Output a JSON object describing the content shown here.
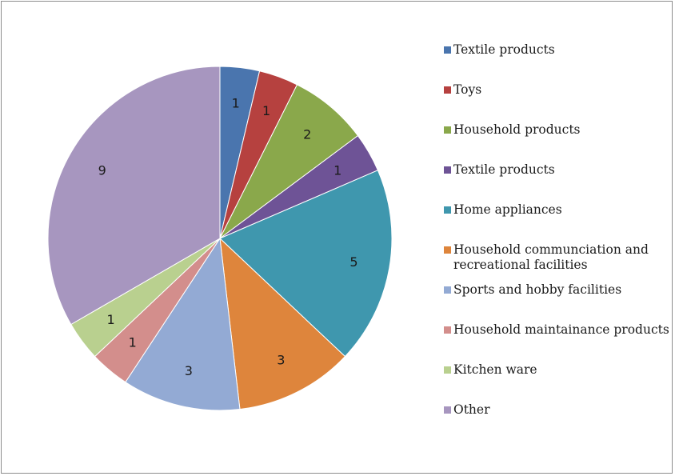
{
  "chart_data": {
    "type": "pie",
    "categories": [
      "Textile products",
      "Toys",
      "Household products",
      "Textile products",
      "Home appliances",
      "Household communciation and recreational facilities",
      "Sports and hobby facilities",
      "Household maintainance products",
      "Kitchen ware",
      "Other"
    ],
    "values": [
      1,
      1,
      2,
      1,
      5,
      3,
      3,
      1,
      1,
      9
    ],
    "colors": [
      "#4a75ae",
      "#b6413f",
      "#8aa84b",
      "#6e5396",
      "#3f97ae",
      "#de853c",
      "#93aad4",
      "#d38e8c",
      "#b9d08f",
      "#a796bf"
    ],
    "legend_position": "right",
    "title": ""
  }
}
